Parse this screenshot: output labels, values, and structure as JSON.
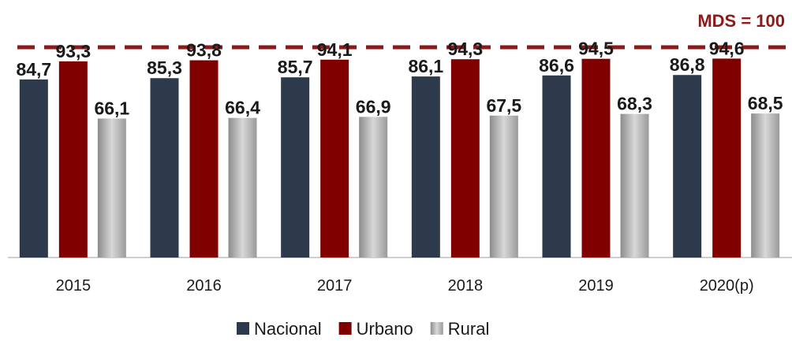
{
  "chart_data": {
    "type": "bar",
    "categories": [
      "2015",
      "2016",
      "2017",
      "2018",
      "2019",
      "2020(p)"
    ],
    "series": [
      {
        "name": "Nacional",
        "color": "#2d3a4b",
        "values": [
          84.7,
          85.3,
          85.7,
          86.1,
          86.6,
          86.8
        ],
        "value_labels": [
          "84,7",
          "85,3",
          "85,7",
          "86,1",
          "86,6",
          "86,8"
        ]
      },
      {
        "name": "Urbano",
        "color": "#800000",
        "values": [
          93.3,
          93.8,
          94.1,
          94.3,
          94.5,
          94.6
        ],
        "value_labels": [
          "93,3",
          "93,8",
          "94,1",
          "94,3",
          "94,5",
          "94,6"
        ]
      },
      {
        "name": "Rural",
        "color": "#b0b0b0",
        "values": [
          66.1,
          66.4,
          66.9,
          67.5,
          68.3,
          68.5
        ],
        "value_labels": [
          "66,1",
          "66,4",
          "66,9",
          "67,5",
          "68,3",
          "68,5"
        ]
      }
    ],
    "reference_line": {
      "value": 100,
      "label": "MDS = 100",
      "color": "#8b1a1a"
    },
    "ylim": [
      0,
      100
    ],
    "legend": "bottom"
  }
}
